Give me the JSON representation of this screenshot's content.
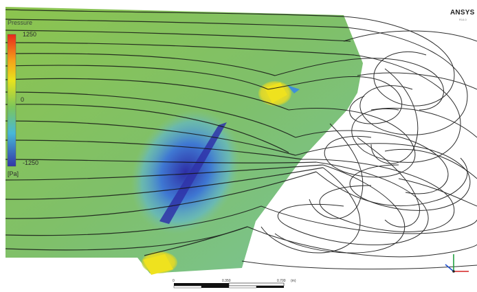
{
  "legend": {
    "title": "Pressure",
    "max": "1250",
    "mid": "0",
    "min": "-1250",
    "unit": "[Pa]"
  },
  "brand": {
    "name": "ANSYS",
    "version": "R14.0"
  },
  "scale_bar": {
    "tick_0": "0",
    "tick_mid": "0.350",
    "tick_end": "0.700",
    "unit": "(m)"
  },
  "colors": {
    "surface_green": "#7fc25a",
    "low_pressure": "#3b3fb0",
    "high_pressure": "#f2e21a",
    "streamline": "#111111"
  },
  "icons": [
    "axis-triad-icon"
  ]
}
